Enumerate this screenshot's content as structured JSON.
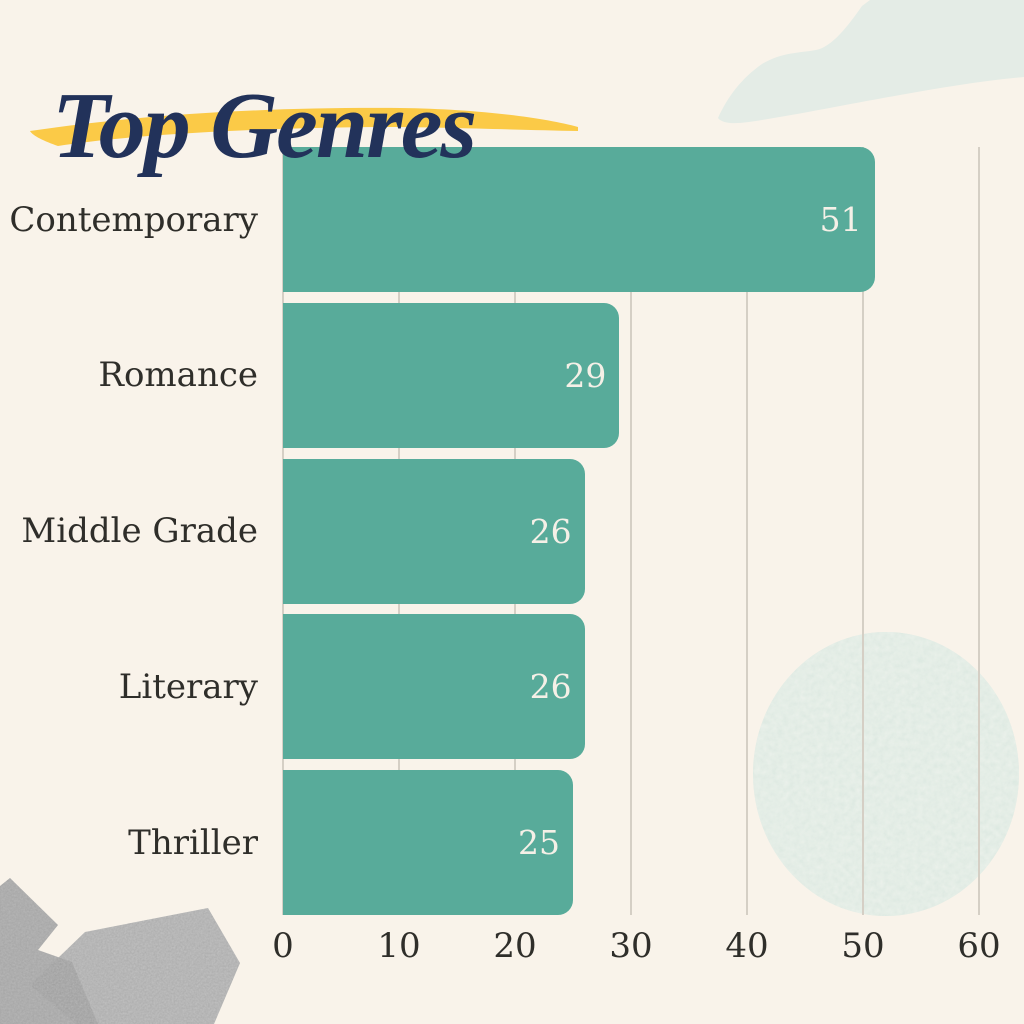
{
  "page": {
    "background": "#f9f3ea"
  },
  "title": {
    "text": "Top Genres",
    "color": "#22325a",
    "underline_color": "#fbca47"
  },
  "chart_data": {
    "type": "bar",
    "orientation": "horizontal",
    "title": "Top Genres",
    "categories": [
      "Contemporary",
      "Romance",
      "Middle Grade",
      "Literary",
      "Thriller"
    ],
    "values": [
      51,
      29,
      26,
      26,
      25
    ],
    "xlabel": "",
    "ylabel": "",
    "xlim": [
      0,
      60
    ],
    "xticks": [
      0,
      10,
      20,
      30,
      40,
      50,
      60
    ],
    "grid": "vertical-only",
    "legend": "none",
    "bar_color": "#58ab9a",
    "value_label_color": "#f5f0e7",
    "category_label_color": "#2f2e2a",
    "tick_label_color": "#2f2e2a",
    "gridline_color": "#d5cfc5"
  },
  "decorations": {
    "blob_color": "#e4ece6",
    "circle_base_color": "#d9e7df",
    "circle_speckle_color": "#f0f4ee",
    "paper_color_1": "#bcbcbc",
    "paper_color_2": "#c7c7c7",
    "paper_grain_color": "#7d7d7d"
  }
}
